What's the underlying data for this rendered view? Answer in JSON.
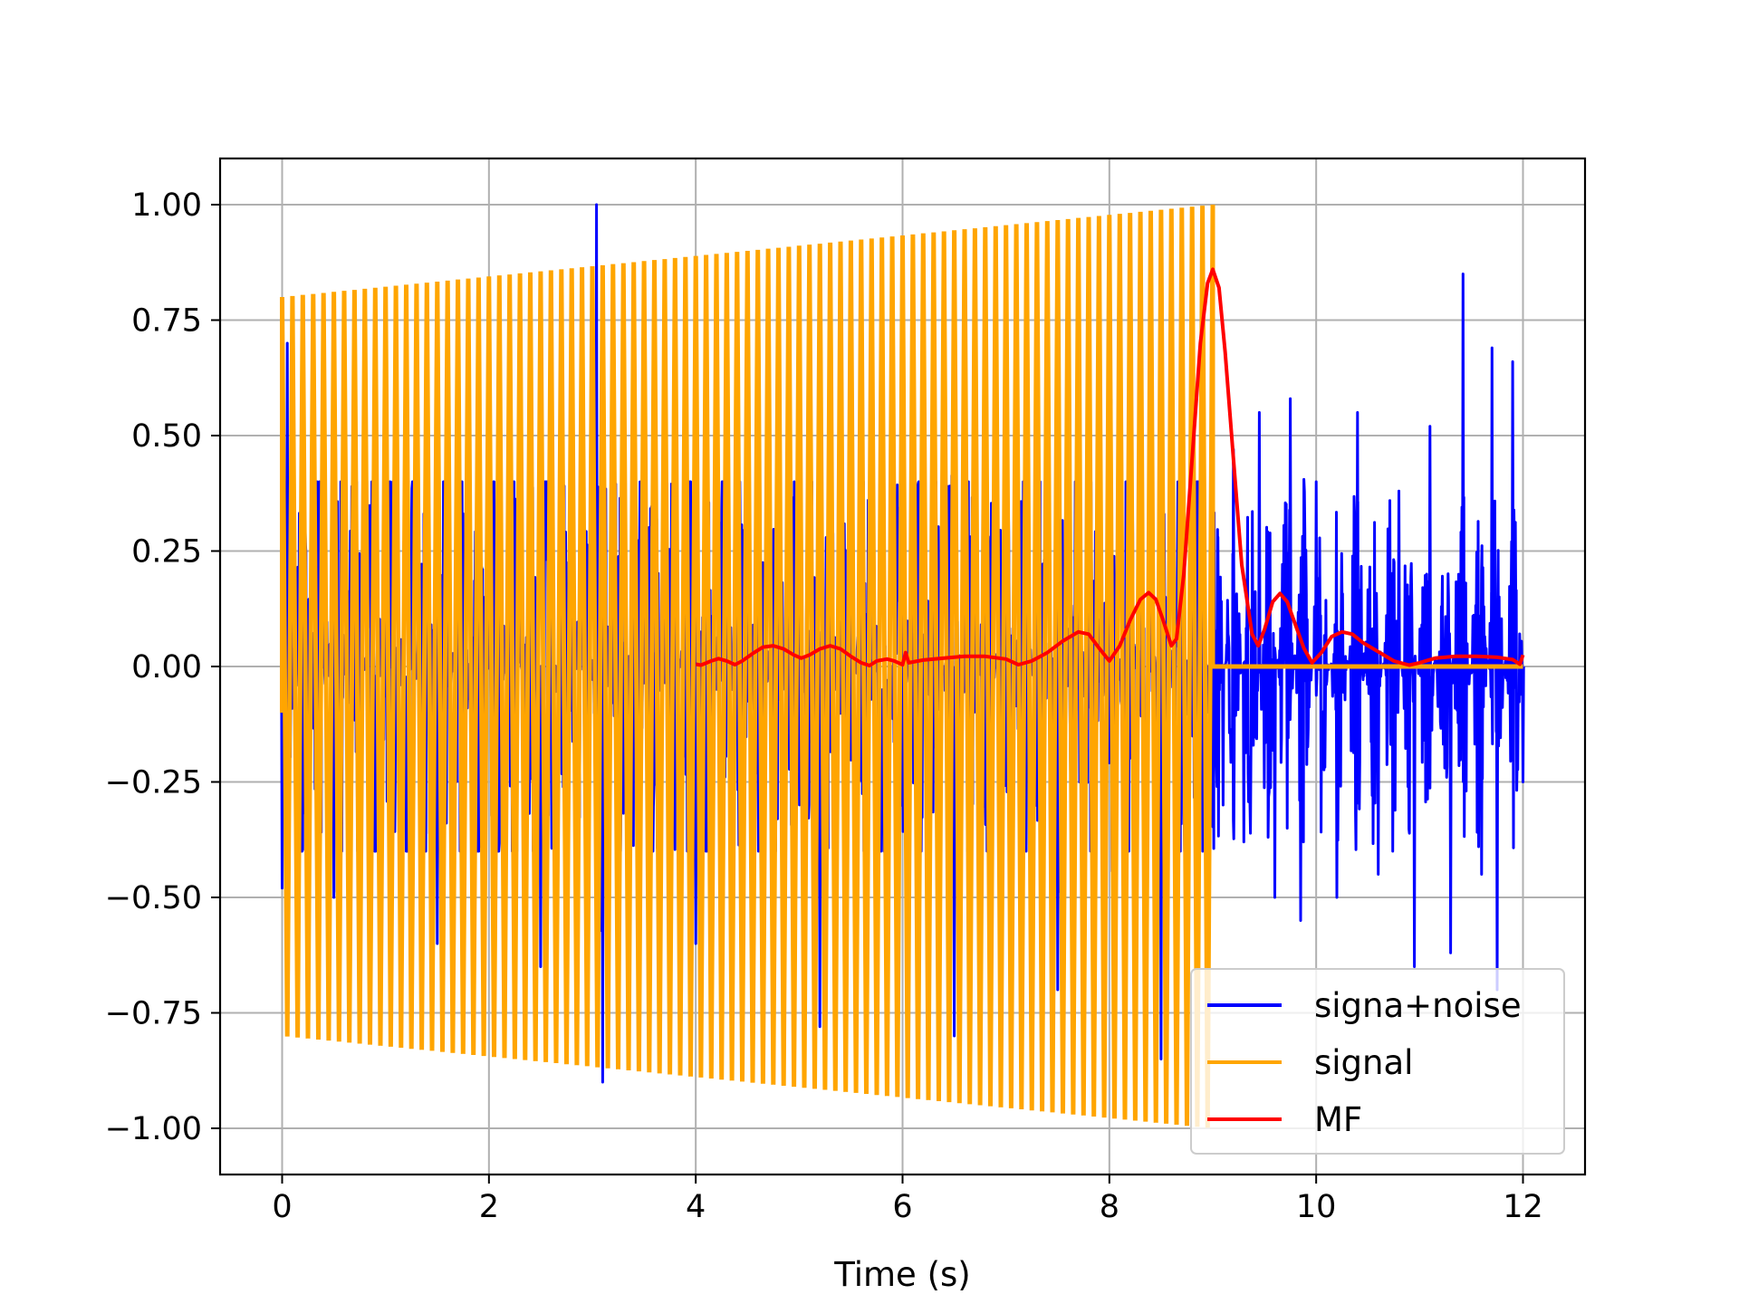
{
  "chart_data": {
    "type": "line",
    "title": "",
    "xlabel": "Time (s)",
    "ylabel": "",
    "xlim": [
      -0.6,
      12.6
    ],
    "ylim": [
      -1.1,
      1.1
    ],
    "xticks": [
      0,
      2,
      4,
      6,
      8,
      10,
      12
    ],
    "xtick_labels": [
      "0",
      "2",
      "4",
      "6",
      "8",
      "10",
      "12"
    ],
    "yticks": [
      -1.0,
      -0.75,
      -0.5,
      -0.25,
      0.0,
      0.25,
      0.5,
      0.75,
      1.0
    ],
    "ytick_labels": [
      "−1.00",
      "−0.75",
      "−0.50",
      "−0.25",
      "0.00",
      "0.25",
      "0.50",
      "0.75",
      "1.00"
    ],
    "grid": true,
    "legend_position": "lower right",
    "series": [
      {
        "name": "signa+noise",
        "color": "#0000ff",
        "envelope_points": [
          [
            0,
            -0.48
          ],
          [
            0.05,
            0.7
          ],
          [
            0.5,
            -0.5
          ],
          [
            1.0,
            0.62
          ],
          [
            1.5,
            -0.6
          ],
          [
            2.0,
            0.6
          ],
          [
            2.5,
            -0.65
          ],
          [
            3.04,
            1.0
          ],
          [
            3.1,
            -0.9
          ],
          [
            3.5,
            0.5
          ],
          [
            4.0,
            -0.6
          ],
          [
            5.0,
            0.75
          ],
          [
            5.2,
            -0.78
          ],
          [
            6.0,
            0.58
          ],
          [
            6.5,
            -0.8
          ],
          [
            7.0,
            0.75
          ],
          [
            7.5,
            -0.7
          ],
          [
            8.0,
            0.8
          ],
          [
            8.5,
            -0.85
          ],
          [
            9.05,
            0.28
          ],
          [
            9.1,
            -0.3
          ],
          [
            9.2,
            0.47
          ],
          [
            9.3,
            -0.38
          ],
          [
            9.45,
            0.55
          ],
          [
            9.6,
            -0.5
          ],
          [
            9.75,
            0.58
          ],
          [
            9.85,
            -0.55
          ],
          [
            10.0,
            0.4
          ],
          [
            10.2,
            -0.5
          ],
          [
            10.4,
            0.55
          ],
          [
            10.6,
            -0.45
          ],
          [
            10.8,
            0.38
          ],
          [
            10.95,
            -0.65
          ],
          [
            11.1,
            0.52
          ],
          [
            11.3,
            -0.62
          ],
          [
            11.42,
            0.85
          ],
          [
            11.6,
            -0.45
          ],
          [
            11.7,
            0.69
          ],
          [
            11.75,
            -0.7
          ],
          [
            11.9,
            0.66
          ],
          [
            12.0,
            -0.25
          ]
        ]
      },
      {
        "name": "signal",
        "color": "#ffa500",
        "amplitude_start": 0.8,
        "amplitude_end": 1.0,
        "start_time": 0,
        "end_time": 9,
        "zero_after_end": true,
        "zero_until": 12,
        "cycles": 90
      },
      {
        "name": "MF",
        "color": "#ff0000",
        "points": [
          [
            4.0,
            0.005
          ],
          [
            4.05,
            0.003
          ],
          [
            4.15,
            0.012
          ],
          [
            4.22,
            0.017
          ],
          [
            4.3,
            0.012
          ],
          [
            4.38,
            0.004
          ],
          [
            4.45,
            0.012
          ],
          [
            4.55,
            0.028
          ],
          [
            4.65,
            0.042
          ],
          [
            4.75,
            0.045
          ],
          [
            4.85,
            0.038
          ],
          [
            4.95,
            0.025
          ],
          [
            5.02,
            0.018
          ],
          [
            5.1,
            0.025
          ],
          [
            5.2,
            0.038
          ],
          [
            5.3,
            0.045
          ],
          [
            5.4,
            0.038
          ],
          [
            5.5,
            0.022
          ],
          [
            5.6,
            0.008
          ],
          [
            5.68,
            0.002
          ],
          [
            5.75,
            0.012
          ],
          [
            5.85,
            0.016
          ],
          [
            5.92,
            0.012
          ],
          [
            6.0,
            0.004
          ],
          [
            6.03,
            0.03
          ],
          [
            6.06,
            0.008
          ],
          [
            6.2,
            0.014
          ],
          [
            6.4,
            0.018
          ],
          [
            6.6,
            0.022
          ],
          [
            6.8,
            0.022
          ],
          [
            7.0,
            0.016
          ],
          [
            7.12,
            0.004
          ],
          [
            7.25,
            0.012
          ],
          [
            7.4,
            0.03
          ],
          [
            7.55,
            0.055
          ],
          [
            7.7,
            0.075
          ],
          [
            7.8,
            0.07
          ],
          [
            7.9,
            0.04
          ],
          [
            8.0,
            0.012
          ],
          [
            8.1,
            0.045
          ],
          [
            8.2,
            0.1
          ],
          [
            8.3,
            0.145
          ],
          [
            8.38,
            0.16
          ],
          [
            8.45,
            0.145
          ],
          [
            8.52,
            0.1
          ],
          [
            8.6,
            0.045
          ],
          [
            8.65,
            0.06
          ],
          [
            8.72,
            0.2
          ],
          [
            8.8,
            0.45
          ],
          [
            8.88,
            0.7
          ],
          [
            8.95,
            0.83
          ],
          [
            9.0,
            0.86
          ],
          [
            9.06,
            0.82
          ],
          [
            9.12,
            0.68
          ],
          [
            9.2,
            0.45
          ],
          [
            9.28,
            0.22
          ],
          [
            9.38,
            0.07
          ],
          [
            9.44,
            0.045
          ],
          [
            9.5,
            0.08
          ],
          [
            9.58,
            0.14
          ],
          [
            9.65,
            0.158
          ],
          [
            9.72,
            0.14
          ],
          [
            9.8,
            0.09
          ],
          [
            9.88,
            0.04
          ],
          [
            9.96,
            0.008
          ],
          [
            10.05,
            0.03
          ],
          [
            10.15,
            0.065
          ],
          [
            10.25,
            0.075
          ],
          [
            10.35,
            0.07
          ],
          [
            10.45,
            0.052
          ],
          [
            10.6,
            0.032
          ],
          [
            10.75,
            0.012
          ],
          [
            10.9,
            0.003
          ],
          [
            11.0,
            0.008
          ],
          [
            11.15,
            0.018
          ],
          [
            11.35,
            0.022
          ],
          [
            11.55,
            0.022
          ],
          [
            11.75,
            0.02
          ],
          [
            11.9,
            0.015
          ],
          [
            11.97,
            0.005
          ],
          [
            12.0,
            0.025
          ]
        ]
      }
    ]
  }
}
